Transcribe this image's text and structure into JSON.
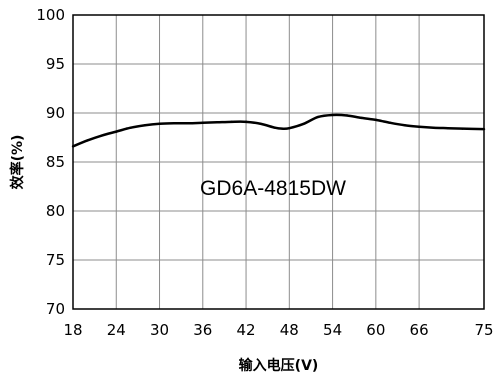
{
  "chart_data": {
    "type": "line",
    "title": "",
    "xlabel": "输入电压(V)",
    "ylabel": "效率(%)",
    "annotation": "GD6A-4815DW",
    "xlim": [
      18,
      75
    ],
    "ylim": [
      70,
      100
    ],
    "xticks": [
      18,
      24,
      30,
      36,
      42,
      48,
      54,
      60,
      66,
      75
    ],
    "yticks": [
      70,
      75,
      80,
      85,
      90,
      95,
      100
    ],
    "grid": true,
    "line_color": "#000000",
    "series": [
      {
        "x": [
          18,
          20,
          22,
          24,
          26,
          28,
          30,
          32,
          34,
          36,
          38,
          40,
          42,
          44,
          46,
          47,
          48,
          50,
          52,
          54,
          56,
          58,
          60,
          62,
          64,
          66,
          68,
          70,
          72,
          75
        ],
        "values": [
          86.6,
          87.2,
          87.7,
          88.1,
          88.5,
          88.75,
          88.9,
          88.95,
          88.95,
          89.0,
          89.05,
          89.1,
          89.1,
          88.9,
          88.5,
          88.4,
          88.45,
          88.9,
          89.6,
          89.8,
          89.75,
          89.5,
          89.3,
          89.0,
          88.75,
          88.6,
          88.5,
          88.45,
          88.4,
          88.35
        ]
      }
    ]
  }
}
